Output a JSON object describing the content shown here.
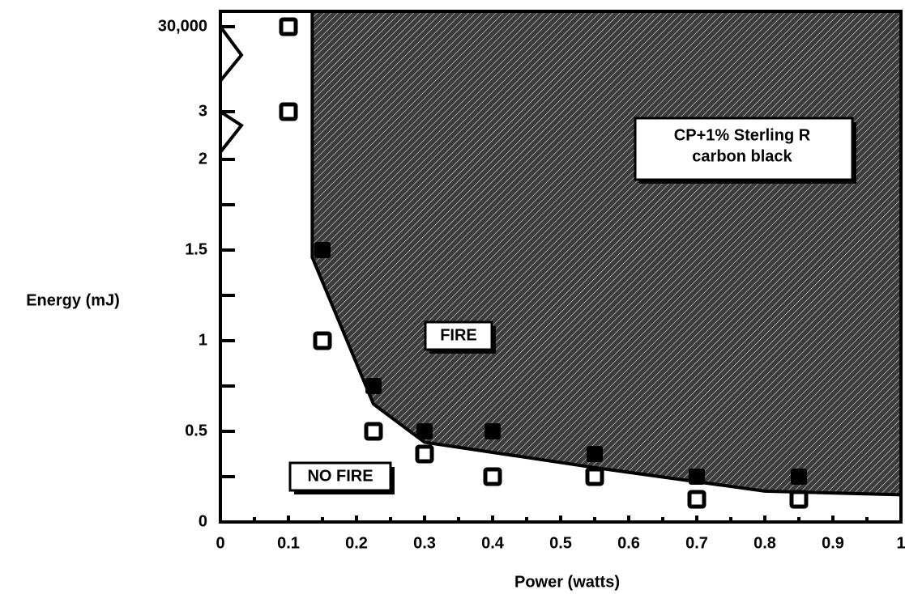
{
  "chart_data": {
    "type": "scatter",
    "x_label": "Power (watts)",
    "y_label": "Energy (mJ)",
    "xlim": [
      0,
      1
    ],
    "xticks": [
      0,
      0.1,
      0.2,
      0.3,
      0.4,
      0.5,
      0.6,
      0.7,
      0.8,
      0.9,
      1
    ],
    "ylim": [
      0,
      30000
    ],
    "yticks": [
      0,
      0.5,
      1,
      1.5,
      2,
      3,
      {
        "value": 30000,
        "label": "30,000"
      }
    ],
    "y_axis_break": true,
    "series": [
      {
        "name": "NO FIRE",
        "marker": "open-square",
        "color": "#000",
        "x": [
          0.1,
          0.1,
          0.15,
          0.225,
          0.3,
          0.4,
          0.55,
          0.7,
          0.85
        ],
        "values": [
          30000,
          3,
          1,
          0.5,
          0.375,
          0.25,
          0.25,
          0.125,
          0.125
        ]
      },
      {
        "name": "FIRE",
        "marker": "filled-square",
        "color": "#000",
        "x": [
          0.15,
          0.225,
          0.3,
          0.4,
          0.55,
          0.7,
          0.85
        ],
        "values": [
          1.5,
          0.75,
          0.5,
          0.5,
          0.375,
          0.25,
          0.25
        ]
      },
      {
        "marker": "boundary-line",
        "color": "#000",
        "x": [
          0.135,
          0.135,
          0.225,
          0.3,
          0.55,
          0.8,
          1
        ],
        "values": [
          30000,
          1.46,
          0.65,
          0.44,
          0.3,
          0.17,
          0.15
        ]
      }
    ],
    "annotations": {
      "fire": "FIRE",
      "no_fire": "NO FIRE",
      "material": [
        "CP+1% Sterling R",
        "carbon black"
      ]
    }
  }
}
